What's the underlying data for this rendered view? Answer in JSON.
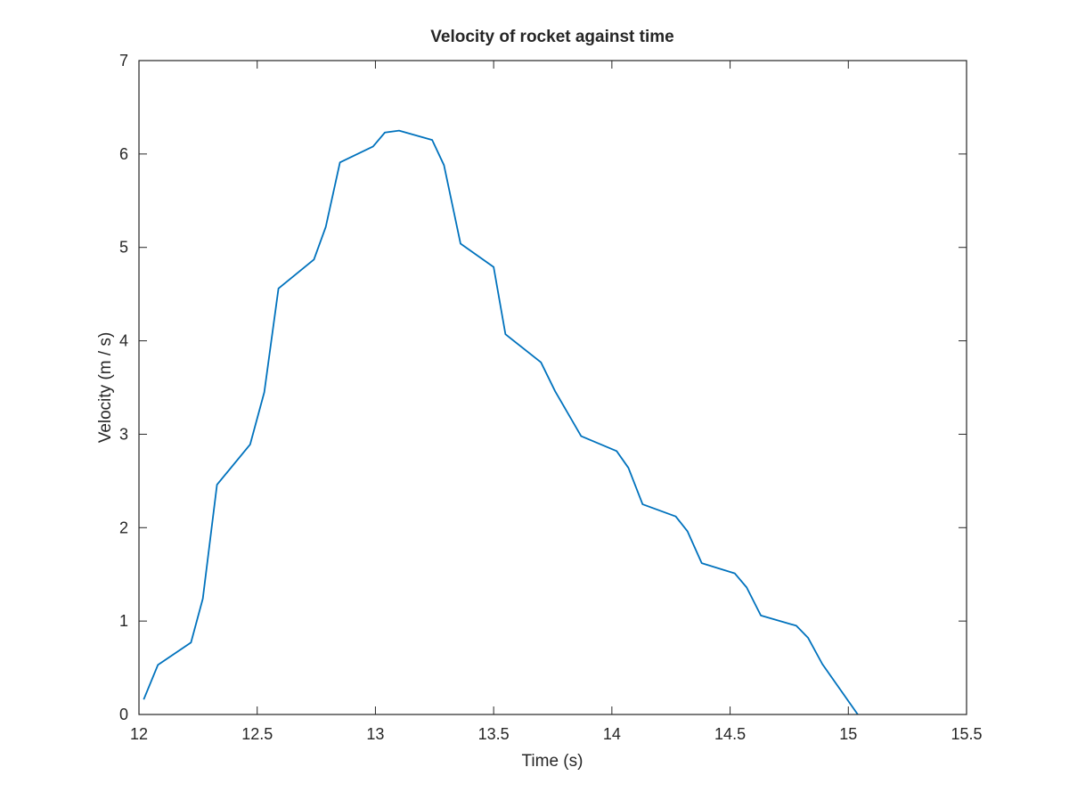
{
  "chart_data": {
    "type": "line",
    "title": "Velocity of rocket against time",
    "xlabel": "Time (s)",
    "ylabel": "Velocity (m / s)",
    "xlim": [
      12,
      15.5
    ],
    "ylim": [
      0,
      7
    ],
    "grid": false,
    "xticks": [
      {
        "value": 12,
        "label": "12"
      },
      {
        "value": 12.5,
        "label": "12.5"
      },
      {
        "value": 13,
        "label": "13"
      },
      {
        "value": 13.5,
        "label": "13.5"
      },
      {
        "value": 14,
        "label": "14"
      },
      {
        "value": 14.5,
        "label": "14.5"
      },
      {
        "value": 15,
        "label": "15"
      },
      {
        "value": 15.5,
        "label": "15.5"
      }
    ],
    "yticks": [
      {
        "value": 0,
        "label": "0"
      },
      {
        "value": 1,
        "label": "1"
      },
      {
        "value": 2,
        "label": "2"
      },
      {
        "value": 3,
        "label": "3"
      },
      {
        "value": 4,
        "label": "4"
      },
      {
        "value": 5,
        "label": "5"
      },
      {
        "value": 6,
        "label": "6"
      },
      {
        "value": 7,
        "label": "7"
      }
    ],
    "series": [
      {
        "color": "#0072bd",
        "x": [
          12.02,
          12.08,
          12.22,
          12.27,
          12.33,
          12.47,
          12.53,
          12.59,
          12.74,
          12.79,
          12.85,
          12.99,
          13.04,
          13.1,
          13.24,
          13.29,
          13.36,
          13.5,
          13.55,
          13.7,
          13.76,
          13.87,
          14.02,
          14.07,
          14.13,
          14.27,
          14.32,
          14.38,
          14.52,
          14.57,
          14.63,
          14.78,
          14.83,
          14.89,
          15.04
        ],
        "y": [
          0.16,
          0.53,
          0.77,
          1.24,
          2.46,
          2.89,
          3.45,
          4.56,
          4.87,
          5.22,
          5.91,
          6.08,
          6.23,
          6.25,
          6.15,
          5.88,
          5.04,
          4.79,
          4.07,
          3.77,
          3.46,
          2.98,
          2.82,
          2.64,
          2.25,
          2.12,
          1.96,
          1.62,
          1.51,
          1.36,
          1.06,
          0.95,
          0.82,
          0.54,
          0.0
        ]
      }
    ]
  }
}
